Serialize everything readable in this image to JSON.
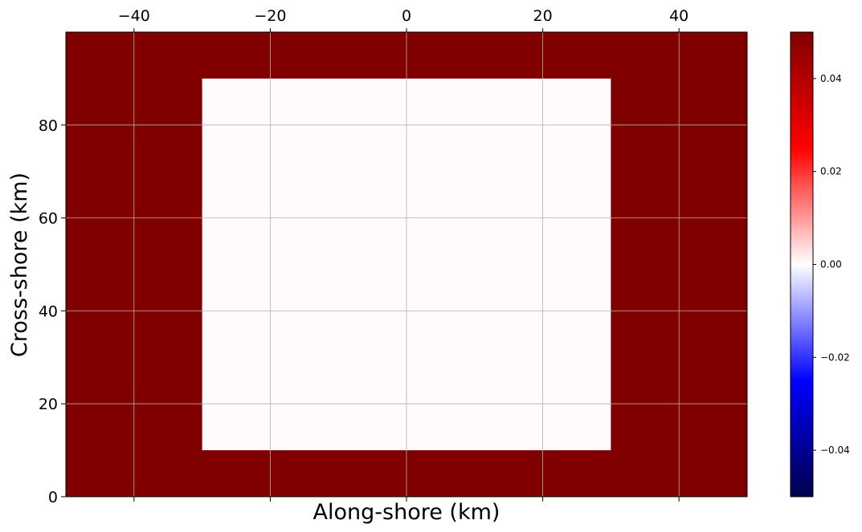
{
  "chart_data": {
    "type": "heatmap",
    "title": "",
    "xlabel": "Along-shore (km)",
    "ylabel": "Cross-shore (km)",
    "xlim": [
      -50,
      50
    ],
    "ylim": [
      0,
      100
    ],
    "x_ticks": [
      -40,
      -20,
      0,
      20,
      40
    ],
    "x_tick_labels": [
      "−40",
      "−20",
      "0",
      "20",
      "40"
    ],
    "x_tick_position": "top",
    "y_ticks": [
      0,
      20,
      40,
      60,
      80
    ],
    "y_tick_labels": [
      "0",
      "20",
      "40",
      "60",
      "80"
    ],
    "grid": true,
    "colormap": "seismic",
    "colorbar": {
      "range": [
        -0.05,
        0.05
      ],
      "ticks": [
        -0.04,
        -0.02,
        0.0,
        0.02,
        0.04
      ],
      "tick_labels": [
        "−0.04",
        "−0.02",
        "0.00",
        "0.02",
        "0.04"
      ],
      "colors": [
        "#00004c",
        "#0000ff",
        "#ffffff",
        "#ff0000",
        "#800000"
      ]
    },
    "regions": [
      {
        "x": [
          -50,
          50
        ],
        "y": [
          0,
          100
        ],
        "value": 0.05,
        "color": "#800000"
      },
      {
        "x": [
          -30,
          30
        ],
        "y": [
          10,
          90
        ],
        "value": 0.0,
        "color": "#fffbfd"
      }
    ]
  }
}
